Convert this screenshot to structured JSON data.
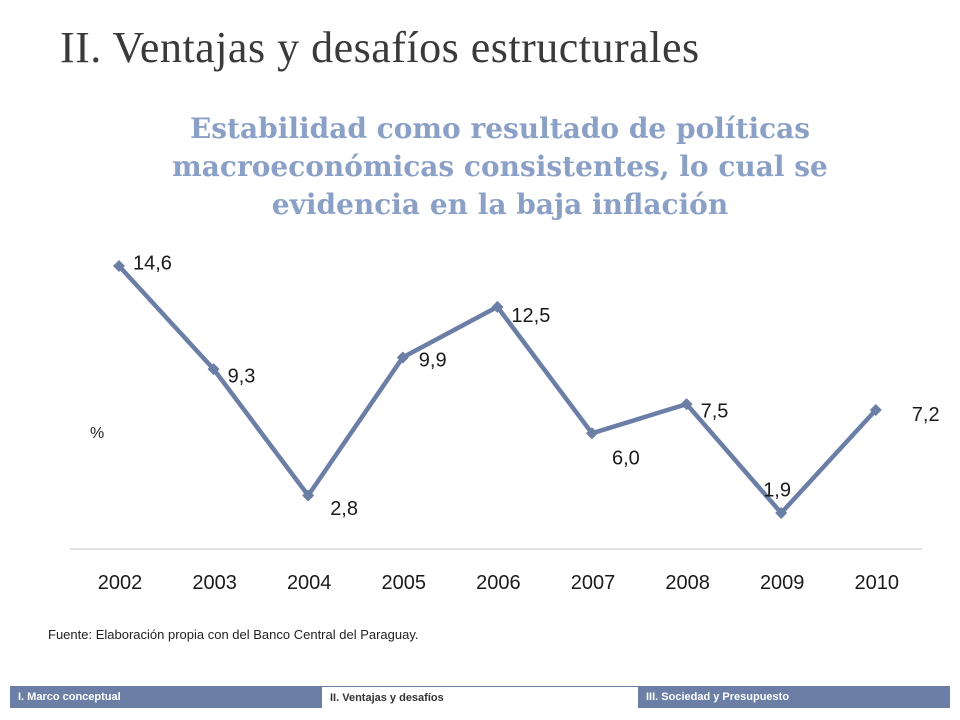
{
  "slide": {
    "title": "II. Ventajas y desafíos estructurales",
    "subtitle": "Estabilidad como resultado de políticas macroeconómicas consistentes, lo cual se evidencia en la baja inflación",
    "source": "Fuente: Elaboración propia con del Banco Central del Paraguay."
  },
  "footer": {
    "items": [
      {
        "label": "I. Marco conceptual",
        "active": false
      },
      {
        "label": "II. Ventajas y desafíos",
        "active": true
      },
      {
        "label": "III. Sociedad y Presupuesto",
        "active": false
      }
    ]
  },
  "chart_data": {
    "type": "line",
    "x": [
      "2002",
      "2003",
      "2004",
      "2005",
      "2006",
      "2007",
      "2008",
      "2009",
      "2010"
    ],
    "values": [
      14.6,
      9.3,
      2.8,
      9.9,
      12.5,
      6.0,
      7.5,
      1.9,
      7.2
    ],
    "data_labels": [
      "14,6",
      "9,3",
      "2,8",
      "9,9",
      "12,5",
      "6,0",
      "7,5",
      "1,9",
      "7,2"
    ],
    "ylabel": "%",
    "color": "#6b7ea6",
    "grid": false,
    "legend": false
  }
}
